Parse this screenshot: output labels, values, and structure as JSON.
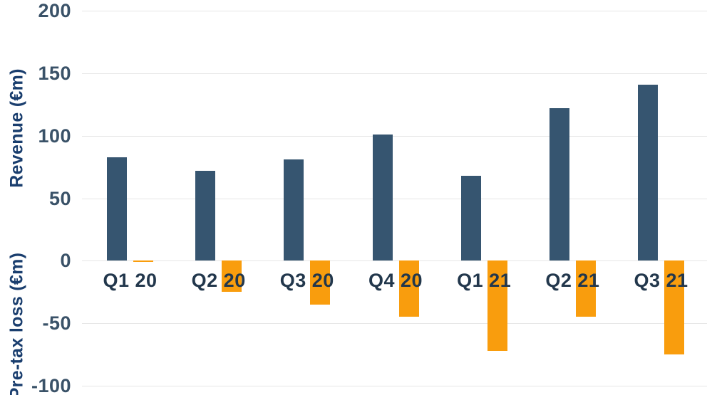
{
  "chart_data": {
    "type": "bar",
    "categories": [
      "Q1 20",
      "Q2 20",
      "Q3 20",
      "Q4 20",
      "Q1 21",
      "Q2 21",
      "Q3 21"
    ],
    "series": [
      {
        "name": "Revenue",
        "color": "#365570",
        "values": [
          83,
          72,
          81,
          101,
          68,
          122,
          141
        ]
      },
      {
        "name": "Pre-tax loss",
        "color": "#f99d0d",
        "values": [
          -1,
          -25,
          -35,
          -45,
          -72,
          -45,
          -75
        ]
      }
    ],
    "title": "",
    "xlabel": "",
    "ylabel_top": "Revenue (€m)",
    "ylabel_bottom": "Pre-tax loss (€m)",
    "yticks": [
      200,
      150,
      100,
      50,
      0,
      -50,
      -100
    ],
    "ylim": [
      -100,
      200
    ],
    "grid": true,
    "legend": false,
    "colors": {
      "revenue_bar": "#365570",
      "loss_bar": "#f99d0d",
      "gridline": "#e6e6e6",
      "tick_text": "#3a5268",
      "axis_title_text": "#1a3e6e",
      "category_text": "#22374c"
    }
  }
}
